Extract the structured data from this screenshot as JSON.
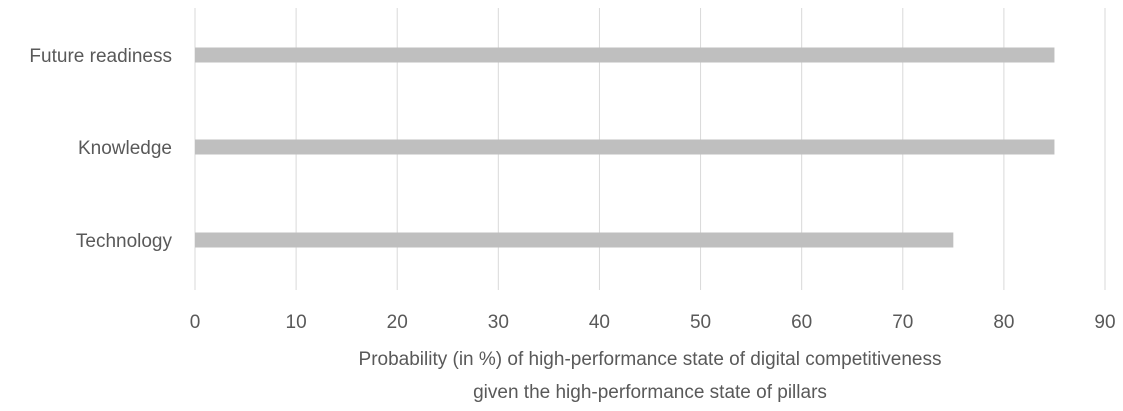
{
  "chart_data": {
    "type": "bar",
    "orientation": "horizontal",
    "categories": [
      "Technology",
      "Knowledge",
      "Future readiness"
    ],
    "values": [
      75,
      85,
      85
    ],
    "xlabel_lines": [
      "Probability (in %) of high-performance state of digital competitiveness",
      "given the high-performance state of pillars"
    ],
    "ylabel": "",
    "xlim": [
      0,
      90
    ],
    "xticks": [
      0,
      10,
      20,
      30,
      40,
      50,
      60,
      70,
      80,
      90
    ],
    "grid": "vertical",
    "legend": "none",
    "colors": {
      "bar": "#bfbfbf",
      "grid": "#d9d9d9",
      "text": "#595959"
    }
  }
}
